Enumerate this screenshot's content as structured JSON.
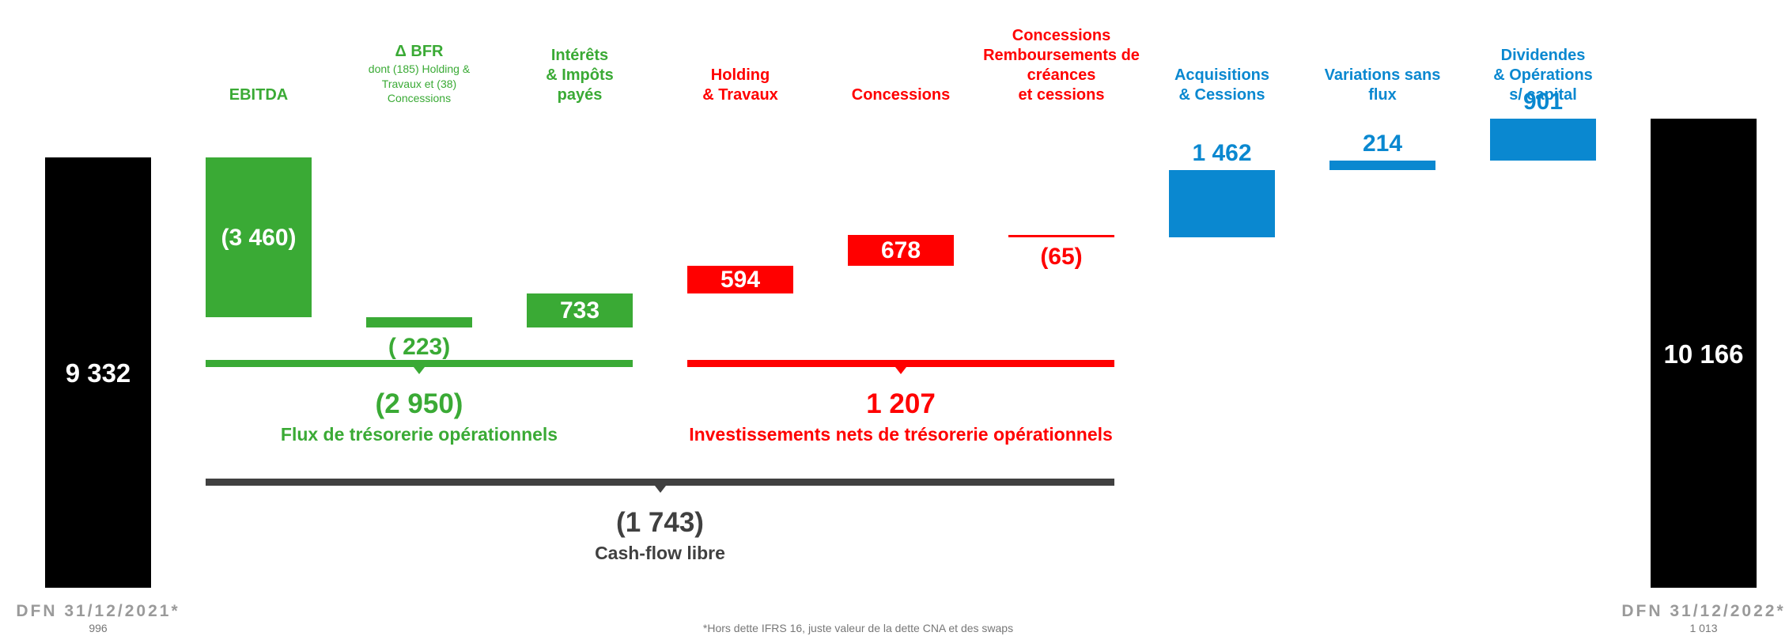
{
  "chart_data": {
    "type": "waterfall",
    "categories": [
      "DFN 31/12/2021*",
      "EBITDA",
      "Δ BFR",
      "Intérêts\n& Impôts\npayés",
      "Holding\n& Travaux",
      "Concessions",
      "Concessions\nRemboursements de\ncréances\net cessions",
      "Acquisitions\n& Cessions",
      "Variations sans\nflux",
      "Dividendes\n& Opérations\ns/ capital",
      "DFN 31/12/2022*"
    ],
    "kinds": [
      "total",
      "delta",
      "delta",
      "delta",
      "delta",
      "delta",
      "delta",
      "delta",
      "delta",
      "delta",
      "total"
    ],
    "values": [
      9332,
      -3460,
      -223,
      733,
      594,
      678,
      -65,
      1462,
      214,
      901,
      10166
    ],
    "value_labels": [
      "9 332",
      "(3 460)",
      "( 223)",
      "733",
      "594",
      "678",
      "(65)",
      "1 462",
      "214",
      "901",
      "10 166"
    ],
    "colors": [
      "#000000",
      "#3aaa35",
      "#3aaa35",
      "#3aaa35",
      "#ff0000",
      "#ff0000",
      "#ff0000",
      "#0a88d0",
      "#0a88d0",
      "#0a88d0",
      "#000000"
    ],
    "category_notes": {
      "0": "996",
      "2": "dont (185) Holding &\nTravaux et (38)\nConcessions",
      "10": "1 013"
    },
    "groups": [
      {
        "name": "Flux de trésorerie opérationnels",
        "value": -2950,
        "value_label": "(2 950)",
        "from": 1,
        "to": 3,
        "color": "#3aaa35"
      },
      {
        "name": "Investissements nets de trésorerie opérationnels",
        "value": 1207,
        "value_label": "1 207",
        "from": 4,
        "to": 6,
        "color": "#ff0000"
      },
      {
        "name": "Cash-flow libre",
        "value": -1743,
        "value_label": "(1 743)",
        "from": 1,
        "to": 6,
        "color": "#404040"
      }
    ],
    "footnote": "*Hors dette IFRS 16, juste valeur de la dette CNA et des swaps"
  }
}
